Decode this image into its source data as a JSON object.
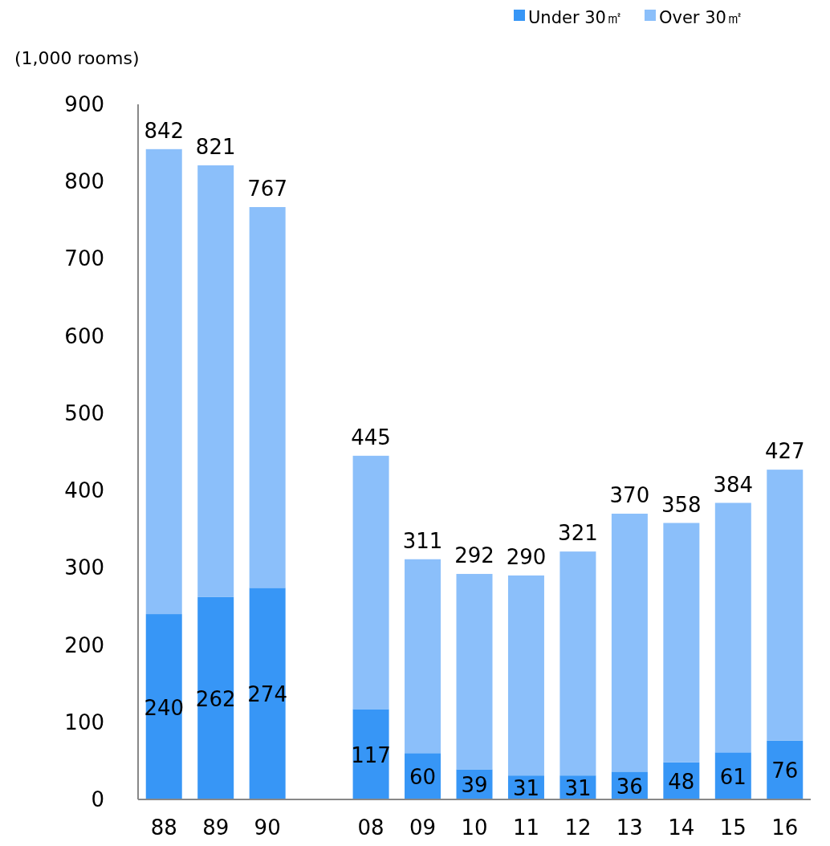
{
  "chart_data": {
    "type": "bar",
    "stacked": true,
    "ylabel": "(1,000 rooms)",
    "legend": "top right",
    "grid": false,
    "categories": [
      "88",
      "89",
      "90",
      null,
      "08",
      "09",
      "10",
      "11",
      "12",
      "13",
      "14",
      "15",
      "16"
    ],
    "series": [
      {
        "name": "Under 30㎡",
        "color": "#3796f6",
        "values": [
          240,
          262,
          274,
          null,
          117,
          60,
          39,
          31,
          31,
          36,
          48,
          61,
          76
        ],
        "value_labels": [
          "240",
          "262",
          "274",
          null,
          "117",
          "60",
          "39",
          "31",
          "31",
          "36",
          "48",
          "61",
          "76"
        ]
      },
      {
        "name": "Over 30㎡",
        "color": "#8bbffa",
        "values": [
          602,
          559,
          493,
          null,
          328,
          251,
          253,
          259,
          290,
          334,
          310,
          323,
          351
        ]
      }
    ],
    "totals": [
      "842",
      "821",
      "767",
      null,
      "445",
      "311",
      "292",
      "290",
      "321",
      "370",
      "358",
      "384",
      "427"
    ],
    "ylim": [
      0,
      900
    ],
    "yticks": [
      0,
      100,
      200,
      300,
      400,
      500,
      600,
      700,
      800,
      900
    ]
  }
}
